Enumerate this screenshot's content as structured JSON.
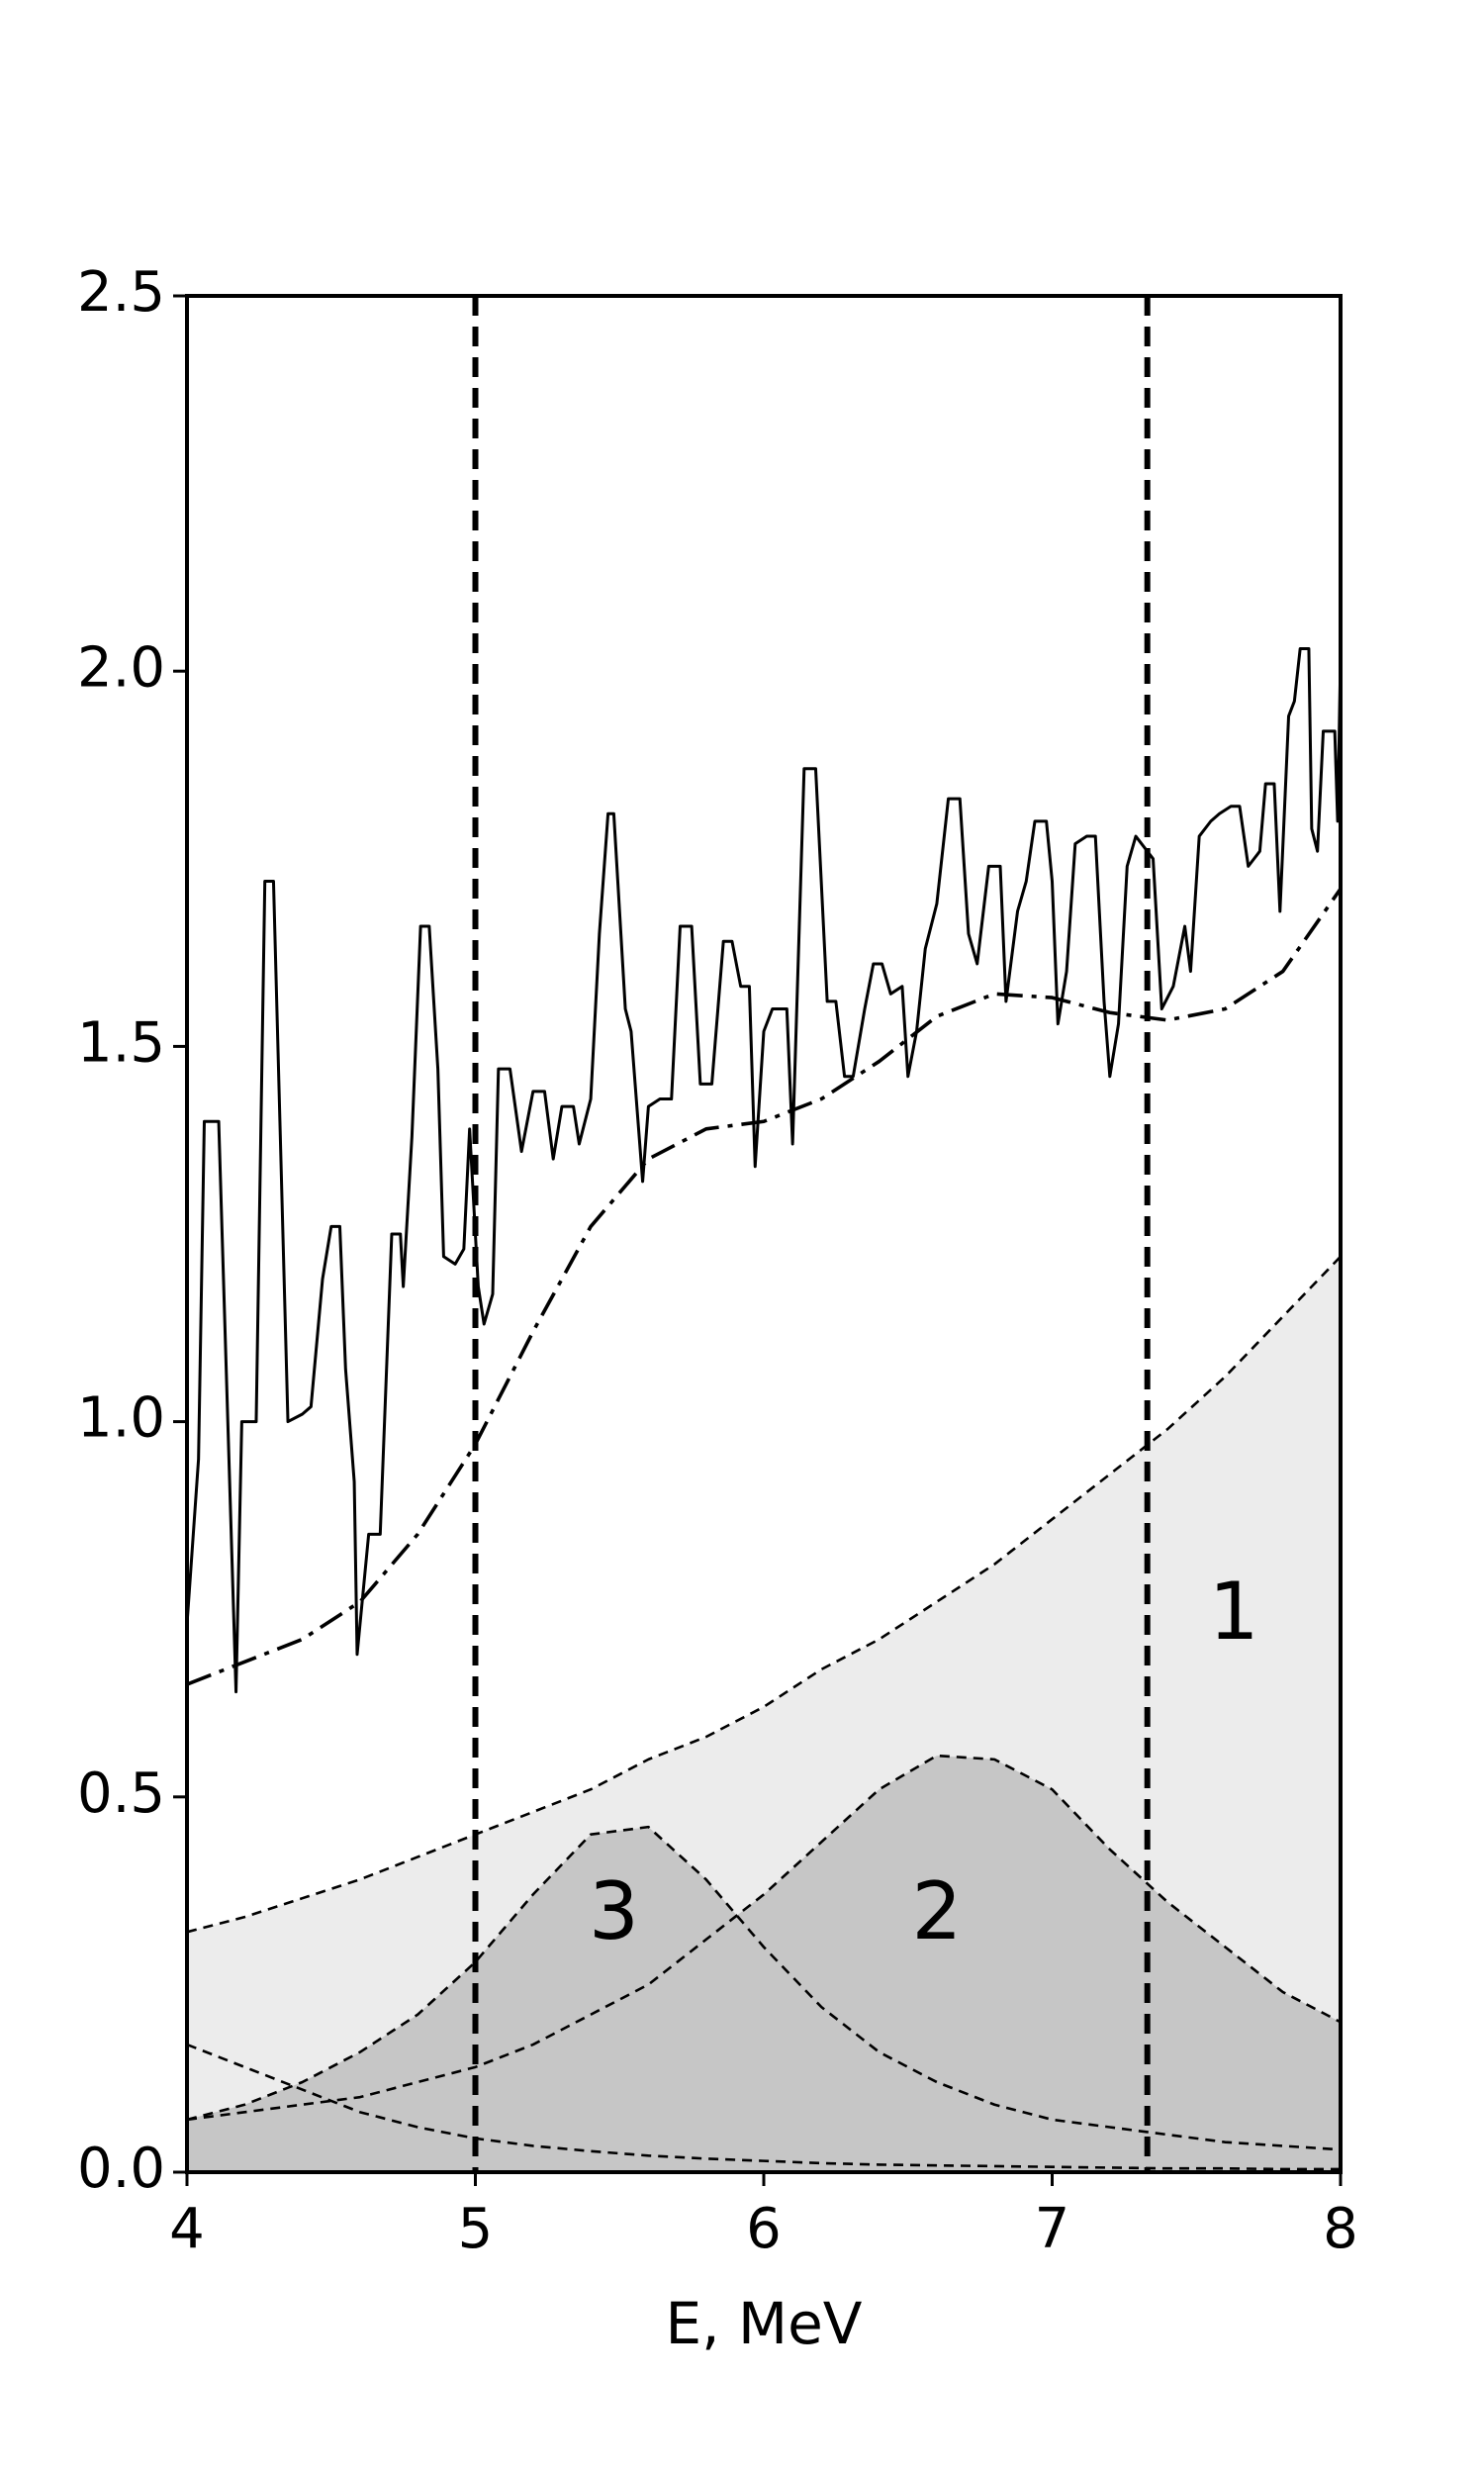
{
  "chart_data": {
    "type": "line",
    "xlabel": "E, MeV",
    "xlim": [
      4,
      8
    ],
    "ylim": [
      0,
      2.5
    ],
    "xticks": [
      4,
      5,
      6,
      7,
      8
    ],
    "yticks": [
      {
        "value": 0,
        "label": "0.0"
      },
      0.5,
      {
        "value": 1,
        "label": "1.0"
      },
      1.5,
      {
        "value": 2,
        "label": "2.0"
      },
      2.5
    ],
    "vlines": [
      5,
      7.33
    ],
    "annotations": [
      "1",
      "3",
      "2"
    ],
    "x": [
      4.0,
      4.2,
      4.4,
      4.6,
      4.8,
      5.0,
      5.2,
      5.4,
      5.6,
      5.8,
      6.0,
      6.2,
      6.4,
      6.6,
      6.8,
      7.0,
      7.2,
      7.4,
      7.6,
      7.8,
      8.0
    ],
    "series": [
      {
        "style": "dashed",
        "color": "#000000",
        "fill": "#ececec",
        "values": [
          0.32,
          0.34,
          0.365,
          0.39,
          0.42,
          0.45,
          0.48,
          0.51,
          0.55,
          0.58,
          0.62,
          0.67,
          0.71,
          0.76,
          0.81,
          0.87,
          0.93,
          0.99,
          1.06,
          1.14,
          1.22
        ]
      },
      {
        "style": "dashed",
        "color": "#000000",
        "fill": "#c6c6c6",
        "values": [
          0.07,
          0.08,
          0.09,
          0.1,
          0.12,
          0.14,
          0.17,
          0.21,
          0.25,
          0.31,
          0.37,
          0.44,
          0.51,
          0.555,
          0.55,
          0.51,
          0.43,
          0.36,
          0.3,
          0.24,
          0.2
        ]
      },
      {
        "style": "dashed",
        "color": "#000000",
        "fill": "#c6c6c6",
        "values": [
          0.07,
          0.09,
          0.12,
          0.16,
          0.21,
          0.28,
          0.37,
          0.45,
          0.46,
          0.39,
          0.3,
          0.22,
          0.16,
          0.12,
          0.09,
          0.07,
          0.06,
          0.05,
          0.04,
          0.035,
          0.03
        ]
      },
      {
        "style": "dashed",
        "color": "#000000",
        "values": [
          0.17,
          0.14,
          0.11,
          0.08,
          0.06,
          0.045,
          0.035,
          0.028,
          0.022,
          0.018,
          0.015,
          0.012,
          0.01,
          0.009,
          0.008,
          0.007,
          0.006,
          0.005,
          0.005,
          0.004,
          0.004
        ]
      },
      {
        "style": "dashdot",
        "color": "#000000",
        "values": [
          0.65,
          0.68,
          0.71,
          0.76,
          0.85,
          0.97,
          1.12,
          1.26,
          1.35,
          1.39,
          1.4,
          1.43,
          1.48,
          1.54,
          1.57,
          1.565,
          1.545,
          1.535,
          1.55,
          1.6,
          1.71
        ]
      },
      {
        "style": "solid",
        "color": "#000000",
        "x": [
          4.0,
          4.04,
          4.06,
          4.11,
          4.17,
          4.19,
          4.24,
          4.27,
          4.3,
          4.35,
          4.4,
          4.43,
          4.47,
          4.5,
          4.53,
          4.55,
          4.58,
          4.59,
          4.63,
          4.67,
          4.71,
          4.74,
          4.75,
          4.78,
          4.81,
          4.84,
          4.87,
          4.89,
          4.93,
          4.96,
          4.98,
          5.01,
          5.03,
          5.06,
          5.08,
          5.12,
          5.16,
          5.2,
          5.24,
          5.27,
          5.3,
          5.34,
          5.36,
          5.4,
          5.43,
          5.46,
          5.48,
          5.52,
          5.54,
          5.58,
          5.6,
          5.64,
          5.68,
          5.71,
          5.75,
          5.78,
          5.82,
          5.86,
          5.89,
          5.92,
          5.95,
          5.97,
          6.0,
          6.03,
          6.08,
          6.1,
          6.14,
          6.18,
          6.22,
          6.25,
          6.28,
          6.31,
          6.35,
          6.38,
          6.41,
          6.44,
          6.48,
          6.5,
          6.53,
          6.56,
          6.6,
          6.64,
          6.68,
          6.71,
          6.74,
          6.78,
          6.82,
          6.84,
          6.88,
          6.91,
          6.94,
          6.98,
          7.0,
          7.02,
          7.05,
          7.08,
          7.12,
          7.15,
          7.18,
          7.2,
          7.23,
          7.26,
          7.29,
          7.35,
          7.38,
          7.42,
          7.46,
          7.48,
          7.51,
          7.55,
          7.58,
          7.62,
          7.65,
          7.68,
          7.72,
          7.74,
          7.77,
          7.79,
          7.82,
          7.84,
          7.86,
          7.89,
          7.9,
          7.92,
          7.94,
          7.98,
          7.99,
          8.0
        ],
        "values": [
          0.73,
          0.95,
          1.4,
          1.4,
          0.64,
          1.0,
          1.0,
          1.72,
          1.72,
          1.0,
          1.01,
          1.02,
          1.19,
          1.26,
          1.26,
          1.07,
          0.92,
          0.69,
          0.85,
          0.85,
          1.25,
          1.25,
          1.18,
          1.38,
          1.66,
          1.66,
          1.47,
          1.22,
          1.21,
          1.23,
          1.39,
          1.18,
          1.13,
          1.17,
          1.47,
          1.47,
          1.36,
          1.44,
          1.44,
          1.35,
          1.42,
          1.42,
          1.37,
          1.43,
          1.65,
          1.81,
          1.81,
          1.55,
          1.52,
          1.32,
          1.42,
          1.43,
          1.43,
          1.66,
          1.66,
          1.45,
          1.45,
          1.64,
          1.64,
          1.58,
          1.58,
          1.34,
          1.52,
          1.55,
          1.55,
          1.37,
          1.87,
          1.87,
          1.56,
          1.56,
          1.46,
          1.46,
          1.55,
          1.61,
          1.61,
          1.57,
          1.58,
          1.46,
          1.52,
          1.63,
          1.69,
          1.83,
          1.83,
          1.65,
          1.61,
          1.74,
          1.74,
          1.56,
          1.68,
          1.72,
          1.8,
          1.8,
          1.72,
          1.53,
          1.6,
          1.77,
          1.78,
          1.78,
          1.56,
          1.46,
          1.53,
          1.74,
          1.78,
          1.75,
          1.55,
          1.58,
          1.66,
          1.6,
          1.78,
          1.8,
          1.81,
          1.82,
          1.82,
          1.74,
          1.76,
          1.85,
          1.85,
          1.68,
          1.94,
          1.96,
          2.03,
          2.03,
          1.79,
          1.76,
          1.92,
          1.92,
          1.8,
          2.02
        ]
      }
    ]
  }
}
